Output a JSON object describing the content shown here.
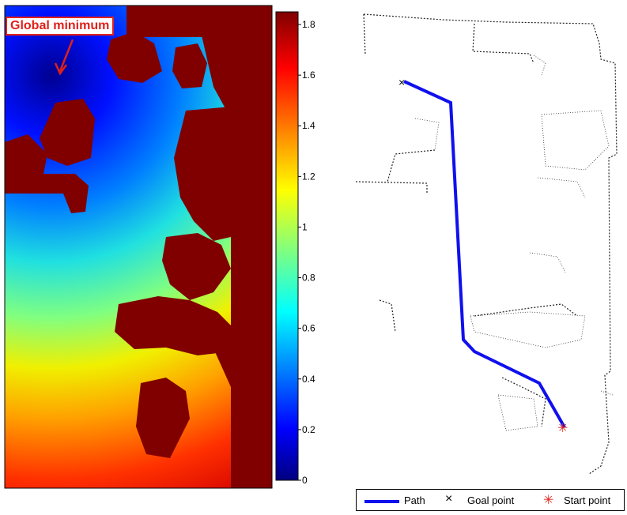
{
  "annotation": {
    "text": "Global minimum",
    "color": "#e0201a"
  },
  "colorbar": {
    "ticks": [
      "0",
      "0.2",
      "0.4",
      "0.6",
      "0.8",
      "1",
      "1.2",
      "1.4",
      "1.6",
      "1.8"
    ],
    "range": [
      0,
      1.85
    ],
    "colormap": "jet"
  },
  "obstacle_color": "#800000",
  "legend": {
    "path_label": "Path",
    "goal_label": "Goal point",
    "start_label": "Start point",
    "goal_symbol": "×",
    "start_symbol": "✳",
    "path_color": "#1010ee",
    "start_color": "#e0201a"
  }
}
